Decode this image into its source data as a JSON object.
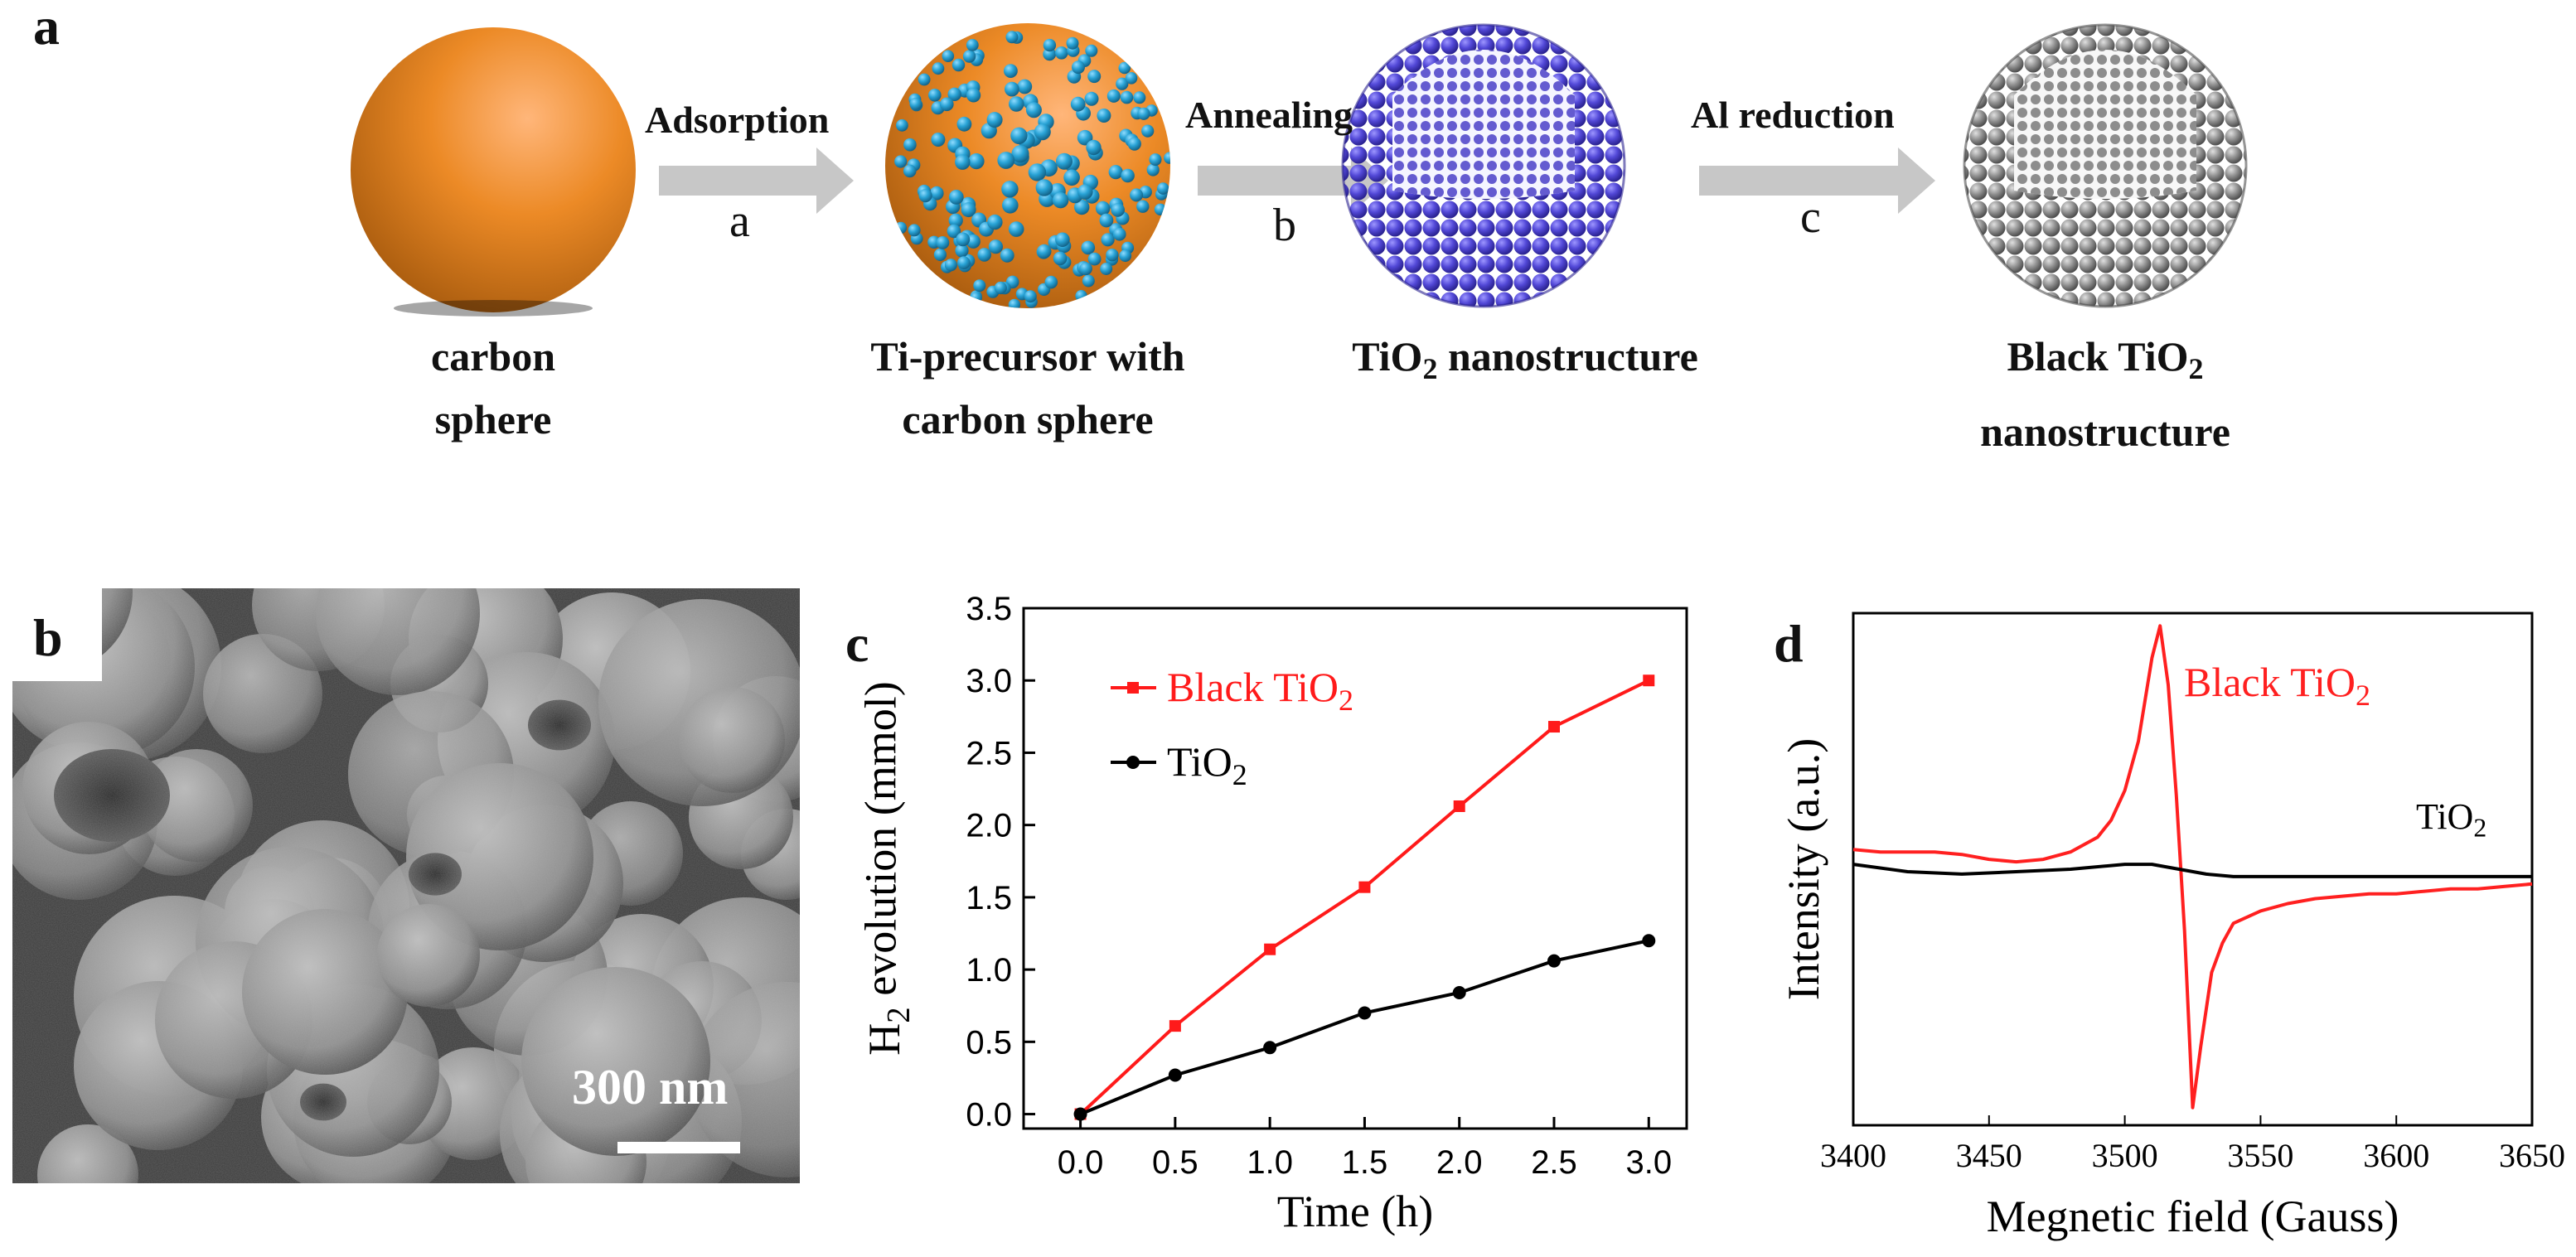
{
  "panel_a": {
    "letter": "a",
    "stages": [
      {
        "line1": "carbon",
        "line2": "sphere"
      },
      {
        "line1": "Ti-precursor with",
        "line2": "carbon sphere"
      },
      {
        "label_main": "TiO",
        "label_sub": "2",
        "label_rest": " nanostructure"
      },
      {
        "line1_main": "Black TiO",
        "line1_sub": "2",
        "line2": "nanostructure"
      }
    ],
    "arrows": [
      {
        "label": "Adsorption",
        "letter": "a"
      },
      {
        "label": "Annealing",
        "letter": "b"
      },
      {
        "label": "Al reduction",
        "letter": "c"
      }
    ],
    "colors": {
      "carbon": "#e07e1e",
      "precursor": "#29a3d6",
      "tio2": "#5349d8",
      "black_tio2": "#8c8c8c",
      "arrow": "#c7c7c7"
    }
  },
  "panel_b": {
    "letter": "b",
    "scale_bar": "300 nm"
  },
  "panel_c": {
    "letter": "c",
    "legend": [
      {
        "main": "Black TiO",
        "sub": "2",
        "color": "#ff1a1a"
      },
      {
        "main": "TiO",
        "sub": "2",
        "color": "#000000"
      }
    ]
  },
  "panel_d": {
    "letter": "d",
    "label_black_main": "Black TiO",
    "label_black_sub": "2",
    "label_tio2_main": "TiO",
    "label_tio2_sub": "2"
  },
  "chart_data": [
    {
      "type": "line",
      "panel": "c",
      "xlabel": "Time (h)",
      "ylabel_main": "H",
      "ylabel_sub": "2",
      "ylabel_rest": " evolution (mmol)",
      "x": [
        0.0,
        0.5,
        1.0,
        1.5,
        2.0,
        2.5,
        3.0
      ],
      "xticks": [
        "0.0",
        "0.5",
        "1.0",
        "1.5",
        "2.0",
        "2.5",
        "3.0"
      ],
      "yticks": [
        "0.0",
        "0.5",
        "1.0",
        "1.5",
        "2.0",
        "2.5",
        "3.0",
        "3.5"
      ],
      "xlim": [
        -0.3,
        3.2
      ],
      "ylim": [
        -0.1,
        3.5
      ],
      "series": [
        {
          "name": "Black TiO2",
          "color": "#ff1a1a",
          "marker": "square",
          "values": [
            0.0,
            0.61,
            1.14,
            1.57,
            2.13,
            2.68,
            3.0
          ]
        },
        {
          "name": "TiO2",
          "color": "#000000",
          "marker": "circle",
          "values": [
            0.0,
            0.27,
            0.46,
            0.7,
            0.84,
            1.06,
            1.2
          ]
        }
      ]
    },
    {
      "type": "line",
      "panel": "d",
      "xlabel": "Megnetic field (Gauss)",
      "ylabel": "Intensity (a.u.)",
      "xticks": [
        "3400",
        "3450",
        "3500",
        "3550",
        "3600",
        "3650"
      ],
      "xlim": [
        3400,
        3650
      ],
      "ylim": [
        -1,
        1
      ],
      "series": [
        {
          "name": "Black TiO2",
          "color": "#ff2020",
          "x": [
            3400,
            3410,
            3420,
            3430,
            3440,
            3450,
            3460,
            3470,
            3480,
            3490,
            3495,
            3500,
            3505,
            3510,
            3513,
            3516,
            3519,
            3522,
            3525,
            3528,
            3532,
            3536,
            3540,
            3550,
            3560,
            3570,
            3580,
            3590,
            3600,
            3610,
            3620,
            3630,
            3640,
            3650
          ],
          "values": [
            0.08,
            0.07,
            0.07,
            0.07,
            0.06,
            0.04,
            0.03,
            0.04,
            0.07,
            0.13,
            0.2,
            0.32,
            0.52,
            0.86,
            0.99,
            0.75,
            0.3,
            -0.25,
            -0.97,
            -0.72,
            -0.42,
            -0.3,
            -0.22,
            -0.17,
            -0.14,
            -0.12,
            -0.11,
            -0.1,
            -0.1,
            -0.09,
            -0.08,
            -0.08,
            -0.07,
            -0.06
          ]
        },
        {
          "name": "TiO2",
          "color": "#000000",
          "x": [
            3400,
            3420,
            3440,
            3460,
            3480,
            3500,
            3510,
            3520,
            3530,
            3540,
            3560,
            3580,
            3600,
            3620,
            3640,
            3650
          ],
          "values": [
            0.02,
            -0.01,
            -0.02,
            -0.01,
            0.0,
            0.02,
            0.02,
            0.0,
            -0.02,
            -0.03,
            -0.03,
            -0.03,
            -0.03,
            -0.03,
            -0.03,
            -0.03
          ]
        }
      ]
    }
  ]
}
